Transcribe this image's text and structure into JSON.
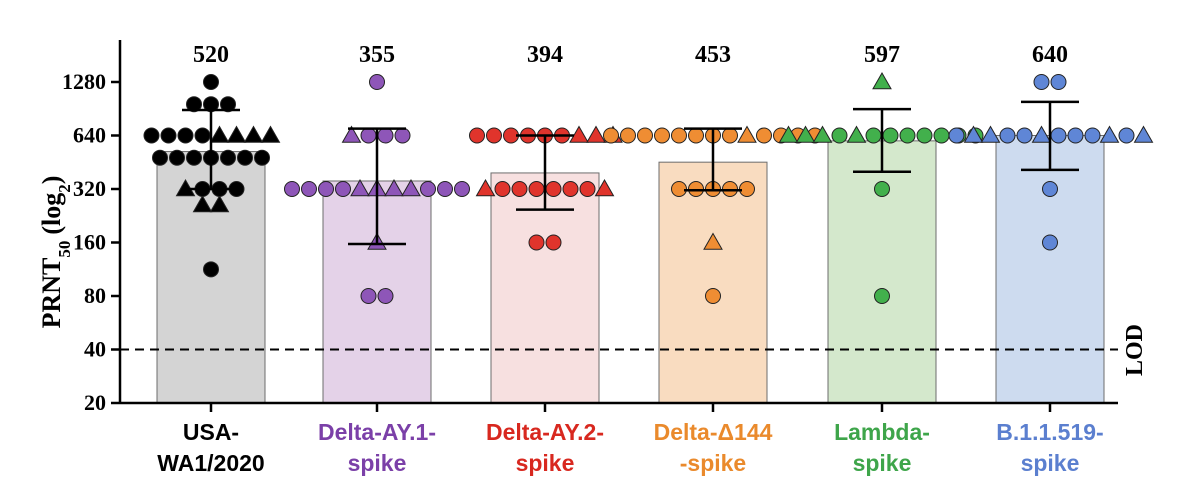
{
  "chart_data": {
    "type": "bar",
    "ylabel": "PRNT",
    "ylabel_subscript": "50",
    "ylabel_suffix": "(log",
    "ylabel_suffix_subscript": "2",
    "ylabel_close": ")",
    "yscale": "log2",
    "ylim": [
      20,
      1800
    ],
    "yticks": [
      20,
      40,
      80,
      160,
      320,
      640,
      1280
    ],
    "lod": {
      "value": 40,
      "label": "LOD"
    },
    "categories": [
      {
        "name": "USA-WA1/2020",
        "label_lines": [
          "USA-",
          "WA1/2020"
        ],
        "gmt": 520,
        "bar_color": "#d4d4d4",
        "label_color": "#000000",
        "marker_color": "#000000",
        "error": [
          320,
          890
        ],
        "points": [
          [
            1280,
            "circle"
          ],
          [
            960,
            "circle"
          ],
          [
            960,
            "circle"
          ],
          [
            960,
            "circle"
          ],
          [
            640,
            "circle"
          ],
          [
            640,
            "circle"
          ],
          [
            640,
            "circle"
          ],
          [
            640,
            "circle"
          ],
          [
            640,
            "triangle"
          ],
          [
            640,
            "triangle"
          ],
          [
            640,
            "triangle"
          ],
          [
            640,
            "triangle"
          ],
          [
            480,
            "circle"
          ],
          [
            480,
            "circle"
          ],
          [
            480,
            "circle"
          ],
          [
            480,
            "circle"
          ],
          [
            480,
            "circle"
          ],
          [
            480,
            "circle"
          ],
          [
            480,
            "circle"
          ],
          [
            320,
            "triangle"
          ],
          [
            320,
            "circle"
          ],
          [
            320,
            "circle"
          ],
          [
            320,
            "circle"
          ],
          [
            260,
            "triangle"
          ],
          [
            260,
            "triangle"
          ],
          [
            113,
            "circle"
          ]
        ]
      },
      {
        "name": "Delta-AY.1-spike",
        "label_lines": [
          "Delta-AY.1-",
          "spike"
        ],
        "gmt": 355,
        "bar_color": "#e4d2e8",
        "label_color": "#7b40a8",
        "marker_color": "#8e56b8",
        "error": [
          157,
          700
        ],
        "points": [
          [
            1280,
            "circle"
          ],
          [
            640,
            "triangle"
          ],
          [
            640,
            "circle"
          ],
          [
            640,
            "circle"
          ],
          [
            640,
            "circle"
          ],
          [
            320,
            "circle"
          ],
          [
            320,
            "circle"
          ],
          [
            320,
            "circle"
          ],
          [
            320,
            "circle"
          ],
          [
            320,
            "triangle"
          ],
          [
            320,
            "triangle"
          ],
          [
            320,
            "triangle"
          ],
          [
            320,
            "triangle"
          ],
          [
            320,
            "circle"
          ],
          [
            320,
            "circle"
          ],
          [
            320,
            "circle"
          ],
          [
            160,
            "triangle"
          ],
          [
            80,
            "circle"
          ],
          [
            80,
            "circle"
          ]
        ]
      },
      {
        "name": "Delta-AY.2-spike",
        "label_lines": [
          "Delta-AY.2-",
          "spike"
        ],
        "gmt": 394,
        "bar_color": "#f7e0e0",
        "label_color": "#d8281f",
        "marker_color": "#e0342c",
        "error": [
          245,
          640
        ],
        "points": [
          [
            640,
            "circle"
          ],
          [
            640,
            "circle"
          ],
          [
            640,
            "circle"
          ],
          [
            640,
            "circle"
          ],
          [
            640,
            "circle"
          ],
          [
            640,
            "circle"
          ],
          [
            640,
            "triangle"
          ],
          [
            640,
            "triangle"
          ],
          [
            640,
            "triangle"
          ],
          [
            320,
            "triangle"
          ],
          [
            320,
            "circle"
          ],
          [
            320,
            "circle"
          ],
          [
            320,
            "circle"
          ],
          [
            320,
            "circle"
          ],
          [
            320,
            "circle"
          ],
          [
            320,
            "circle"
          ],
          [
            320,
            "triangle"
          ],
          [
            160,
            "circle"
          ],
          [
            160,
            "circle"
          ]
        ]
      },
      {
        "name": "Delta-Δ144-spike",
        "label_lines": [
          "Delta-Δ144",
          "-spike"
        ],
        "gmt": 453,
        "bar_color": "#f9dcc0",
        "label_color": "#ea8a2c",
        "marker_color": "#ef8d33",
        "error": [
          315,
          700
        ],
        "points": [
          [
            640,
            "circle"
          ],
          [
            640,
            "circle"
          ],
          [
            640,
            "circle"
          ],
          [
            640,
            "circle"
          ],
          [
            640,
            "circle"
          ],
          [
            640,
            "circle"
          ],
          [
            640,
            "circle"
          ],
          [
            640,
            "circle"
          ],
          [
            640,
            "triangle"
          ],
          [
            640,
            "circle"
          ],
          [
            640,
            "circle"
          ],
          [
            640,
            "circle"
          ],
          [
            640,
            "circle"
          ],
          [
            320,
            "circle"
          ],
          [
            320,
            "circle"
          ],
          [
            320,
            "circle"
          ],
          [
            320,
            "circle"
          ],
          [
            320,
            "circle"
          ],
          [
            160,
            "triangle"
          ],
          [
            80,
            "circle"
          ]
        ]
      },
      {
        "name": "Lambda-spike",
        "label_lines": [
          "Lambda-",
          "spike"
        ],
        "gmt": 597,
        "bar_color": "#d4e8cc",
        "label_color": "#3ea54a",
        "marker_color": "#42b04c",
        "error": [
          400,
          900
        ],
        "points": [
          [
            1280,
            "triangle"
          ],
          [
            640,
            "triangle"
          ],
          [
            640,
            "triangle"
          ],
          [
            640,
            "triangle"
          ],
          [
            640,
            "circle"
          ],
          [
            640,
            "triangle"
          ],
          [
            640,
            "circle"
          ],
          [
            640,
            "circle"
          ],
          [
            640,
            "circle"
          ],
          [
            640,
            "circle"
          ],
          [
            640,
            "circle"
          ],
          [
            640,
            "circle"
          ],
          [
            640,
            "circle"
          ],
          [
            320,
            "circle"
          ],
          [
            80,
            "circle"
          ]
        ]
      },
      {
        "name": "B.1.1.519-spike",
        "label_lines": [
          "B.1.1.519-",
          "spike"
        ],
        "gmt": 640,
        "bar_color": "#cddbef",
        "label_color": "#5b7fcf",
        "marker_color": "#5f86d6",
        "error": [
          410,
          990
        ],
        "points": [
          [
            1280,
            "circle"
          ],
          [
            1280,
            "circle"
          ],
          [
            640,
            "circle"
          ],
          [
            640,
            "triangle"
          ],
          [
            640,
            "triangle"
          ],
          [
            640,
            "circle"
          ],
          [
            640,
            "circle"
          ],
          [
            640,
            "triangle"
          ],
          [
            640,
            "circle"
          ],
          [
            640,
            "circle"
          ],
          [
            640,
            "circle"
          ],
          [
            640,
            "triangle"
          ],
          [
            640,
            "circle"
          ],
          [
            640,
            "triangle"
          ],
          [
            320,
            "circle"
          ],
          [
            160,
            "circle"
          ]
        ]
      }
    ]
  }
}
